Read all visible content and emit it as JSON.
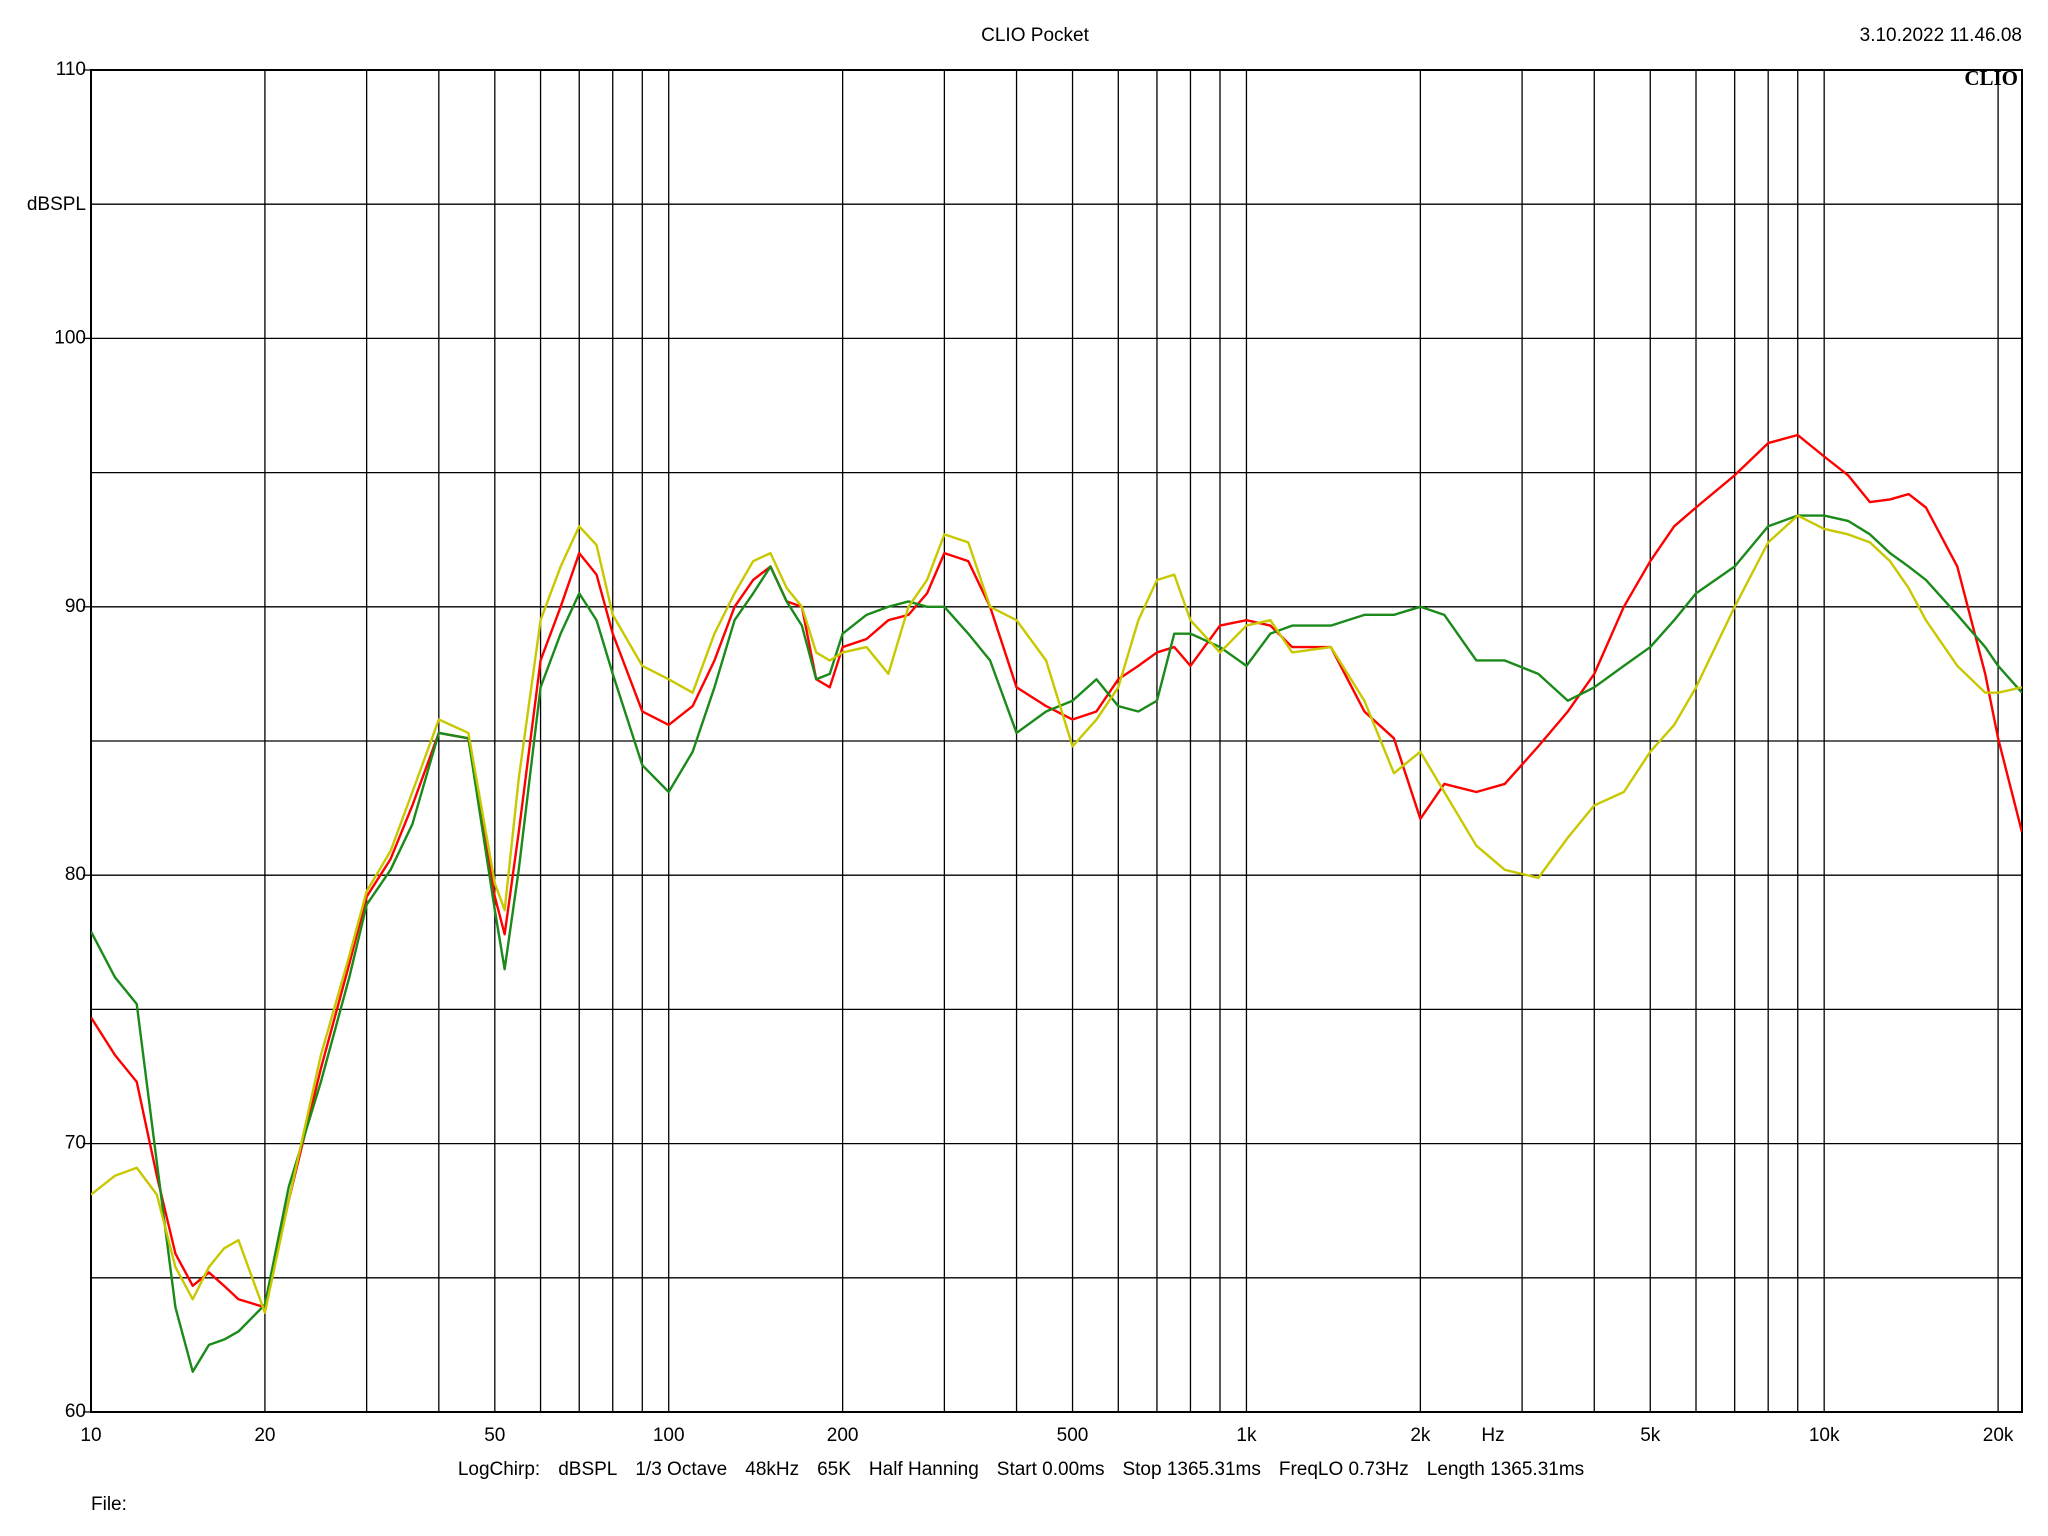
{
  "chart_data": {
    "type": "line",
    "title": "CLIO Pocket",
    "timestamp": "3.10.2022 11.46.08",
    "logo": "CLIO",
    "y_label": "dBSPL",
    "x_label": "Hz",
    "footer": [
      "LogChirp:",
      "dBSPL",
      "1/3 Octave",
      "48kHz",
      "65K",
      "Half Hanning",
      "Start 0.00ms",
      "Stop 1365.31ms",
      "FreqLO 0.73Hz",
      "Length 1365.31ms"
    ],
    "file_label": "File:",
    "x_scale": "log",
    "grid": true,
    "xlim": [
      10,
      22000
    ],
    "ylim": [
      60,
      110
    ],
    "xticks": [
      10,
      20,
      50,
      100,
      200,
      500,
      {
        "value": 1000,
        "label": "1k"
      },
      {
        "value": 2000,
        "label": "2k"
      },
      {
        "value": 5000,
        "label": "5k"
      },
      {
        "value": 10000,
        "label": "10k"
      },
      {
        "value": 20000,
        "label": "20k"
      }
    ],
    "xminor": [
      30,
      40,
      60,
      70,
      80,
      90,
      300,
      400,
      600,
      700,
      800,
      900,
      3000,
      4000,
      6000,
      7000,
      8000,
      9000
    ],
    "yticks": [
      60,
      70,
      80,
      90,
      100,
      110
    ],
    "yminor": [
      65,
      75,
      85,
      95,
      105
    ],
    "x": [
      10,
      11,
      12,
      13,
      14,
      15,
      16,
      17,
      18,
      20,
      22,
      25,
      28,
      30,
      33,
      36,
      40,
      45,
      50,
      52,
      55,
      60,
      65,
      70,
      75,
      80,
      90,
      100,
      110,
      120,
      130,
      140,
      150,
      160,
      170,
      180,
      190,
      200,
      220,
      240,
      260,
      280,
      300,
      330,
      360,
      400,
      450,
      500,
      550,
      600,
      650,
      700,
      750,
      800,
      900,
      1000,
      1100,
      1200,
      1400,
      1600,
      1800,
      2000,
      2200,
      2500,
      2800,
      3200,
      3600,
      4000,
      4500,
      5000,
      5500,
      6000,
      7000,
      8000,
      9000,
      10000,
      11000,
      12000,
      13000,
      14000,
      15000,
      17000,
      19000,
      20000,
      22000
    ],
    "series": [
      {
        "color": "#ff0000",
        "values": [
          74.7,
          73.3,
          72.3,
          68.8,
          65.9,
          64.7,
          65.2,
          64.7,
          64.2,
          63.9,
          67.9,
          72.8,
          76.7,
          79.2,
          80.6,
          82.6,
          85.3,
          85.1,
          79.2,
          77.8,
          81.6,
          88.0,
          90.0,
          92.0,
          91.2,
          89.0,
          86.1,
          85.6,
          86.3,
          88.0,
          90.0,
          91.0,
          91.5,
          90.2,
          90.0,
          87.3,
          87.0,
          88.5,
          88.8,
          89.5,
          89.7,
          90.5,
          92.0,
          91.7,
          90.0,
          87.0,
          86.3,
          85.8,
          86.1,
          87.3,
          87.8,
          88.3,
          88.5,
          87.8,
          89.3,
          89.5,
          89.3,
          88.5,
          88.5,
          86.1,
          85.1,
          82.1,
          83.4,
          83.1,
          83.4,
          84.8,
          86.1,
          87.5,
          90.0,
          91.7,
          93.0,
          93.7,
          94.9,
          96.1,
          96.4,
          95.6,
          94.9,
          93.9,
          94.0,
          94.2,
          93.7,
          91.5,
          87.5,
          85.1,
          81.6
        ]
      },
      {
        "color": "#1a8a1a",
        "values": [
          77.9,
          76.2,
          75.2,
          69.3,
          63.9,
          61.5,
          62.5,
          62.7,
          63.0,
          64.0,
          68.4,
          72.3,
          76.2,
          78.9,
          80.2,
          81.9,
          85.3,
          85.1,
          78.7,
          76.5,
          80.2,
          87.0,
          89.0,
          90.5,
          89.5,
          87.5,
          84.1,
          83.1,
          84.6,
          87.0,
          89.5,
          90.5,
          91.5,
          90.2,
          89.3,
          87.3,
          87.5,
          89.0,
          89.7,
          90.0,
          90.2,
          90.0,
          90.0,
          89.0,
          88.0,
          85.3,
          86.1,
          86.5,
          87.3,
          86.3,
          86.1,
          86.5,
          89.0,
          89.0,
          88.5,
          87.8,
          89.0,
          89.3,
          89.3,
          89.7,
          89.7,
          90.0,
          89.7,
          88.0,
          88.0,
          87.5,
          86.5,
          87.0,
          87.8,
          88.5,
          89.5,
          90.5,
          91.5,
          93.0,
          93.4,
          93.4,
          93.2,
          92.7,
          92.0,
          91.5,
          91.0,
          89.7,
          88.5,
          87.8,
          86.8
        ]
      },
      {
        "color": "#c8c800",
        "values": [
          68.1,
          68.8,
          69.1,
          68.1,
          65.4,
          64.2,
          65.4,
          66.1,
          66.4,
          63.7,
          67.9,
          73.3,
          77.0,
          79.4,
          80.9,
          83.1,
          85.8,
          85.3,
          79.7,
          78.7,
          83.6,
          89.5,
          91.5,
          93.0,
          92.3,
          89.7,
          87.8,
          87.3,
          86.8,
          89.0,
          90.5,
          91.7,
          92.0,
          90.7,
          90.0,
          88.3,
          88.0,
          88.3,
          88.5,
          87.5,
          90.0,
          91.0,
          92.7,
          92.4,
          90.0,
          89.5,
          88.0,
          84.8,
          85.8,
          87.0,
          89.5,
          91.0,
          91.2,
          89.5,
          88.3,
          89.3,
          89.5,
          88.3,
          88.5,
          86.5,
          83.8,
          84.6,
          83.1,
          81.1,
          80.2,
          79.9,
          81.4,
          82.6,
          83.1,
          84.6,
          85.6,
          87.0,
          90.0,
          92.4,
          93.4,
          92.9,
          92.7,
          92.4,
          91.7,
          90.7,
          89.5,
          87.8,
          86.8,
          86.8,
          87.0
        ]
      }
    ]
  }
}
